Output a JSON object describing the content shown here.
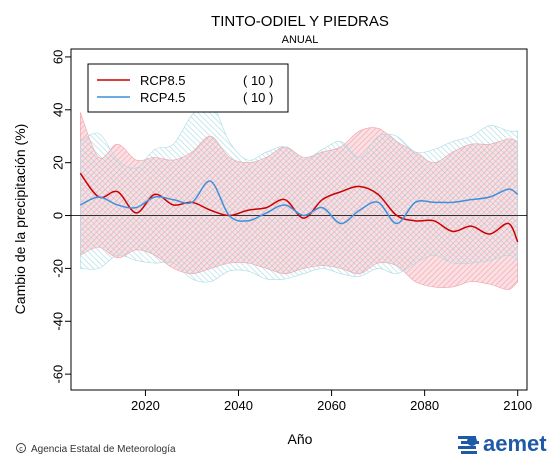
{
  "chart_data": {
    "type": "area",
    "title": "TINTO-ODIEL Y PIEDRAS",
    "subtitle": "ANUAL",
    "xlabel": "Año",
    "ylabel": "Cambio de la precipitación (%)",
    "xlim": [
      2004,
      2102
    ],
    "ylim": [
      -66,
      63
    ],
    "x_ticks": [
      2020,
      2040,
      2060,
      2080,
      2100
    ],
    "y_ticks": [
      -60,
      -40,
      -20,
      0,
      20,
      40,
      60
    ],
    "grid": false,
    "legend_position": "top-left",
    "x": [
      2006,
      2010,
      2014,
      2018,
      2022,
      2026,
      2030,
      2034,
      2038,
      2042,
      2046,
      2050,
      2054,
      2058,
      2062,
      2066,
      2070,
      2074,
      2078,
      2082,
      2086,
      2090,
      2094,
      2098,
      2100
    ],
    "series": [
      {
        "name": "RCP8.5",
        "count": "( 10 )",
        "color": "#cc0000",
        "band_color": "#f4a0a8",
        "values": [
          16,
          7,
          9,
          1,
          8,
          4,
          5,
          2,
          0,
          2,
          3,
          6,
          -1,
          6,
          9,
          11,
          8,
          0,
          -2,
          -2,
          -6,
          -4,
          -7,
          -3,
          -10
        ],
        "band_upper": [
          39,
          22,
          27,
          21,
          22,
          21,
          24,
          30,
          22,
          20,
          22,
          26,
          22,
          24,
          26,
          32,
          33,
          28,
          24,
          20,
          24,
          27,
          27,
          29,
          28
        ],
        "band_lower": [
          -15,
          -12,
          -16,
          -13,
          -15,
          -20,
          -22,
          -20,
          -18,
          -18,
          -20,
          -22,
          -20,
          -19,
          -20,
          -22,
          -18,
          -19,
          -25,
          -27,
          -27,
          -25,
          -26,
          -28,
          -25
        ]
      },
      {
        "name": "RCP4.5",
        "count": "( 10 )",
        "color": "#3f8fdc",
        "band_color": "#a8dbe6",
        "values": [
          4,
          7,
          4,
          3,
          7,
          6,
          5,
          13,
          0,
          -2,
          1,
          4,
          0,
          3,
          -3,
          2,
          5,
          -3,
          5,
          5,
          5,
          6,
          7,
          10,
          8
        ],
        "band_upper": [
          28,
          31,
          21,
          18,
          25,
          27,
          38,
          43,
          28,
          21,
          24,
          26,
          21,
          25,
          28,
          22,
          30,
          30,
          24,
          25,
          28,
          30,
          34,
          32,
          32
        ],
        "band_lower": [
          -20,
          -20,
          -15,
          -17,
          -18,
          -18,
          -24,
          -25,
          -21,
          -21,
          -24,
          -24,
          -22,
          -20,
          -22,
          -23,
          -20,
          -22,
          -18,
          -15,
          -18,
          -18,
          -17,
          -15,
          -17
        ]
      }
    ]
  },
  "footer": {
    "credit": "Agencia Estatal de Meteorología",
    "brand": "aemet"
  }
}
